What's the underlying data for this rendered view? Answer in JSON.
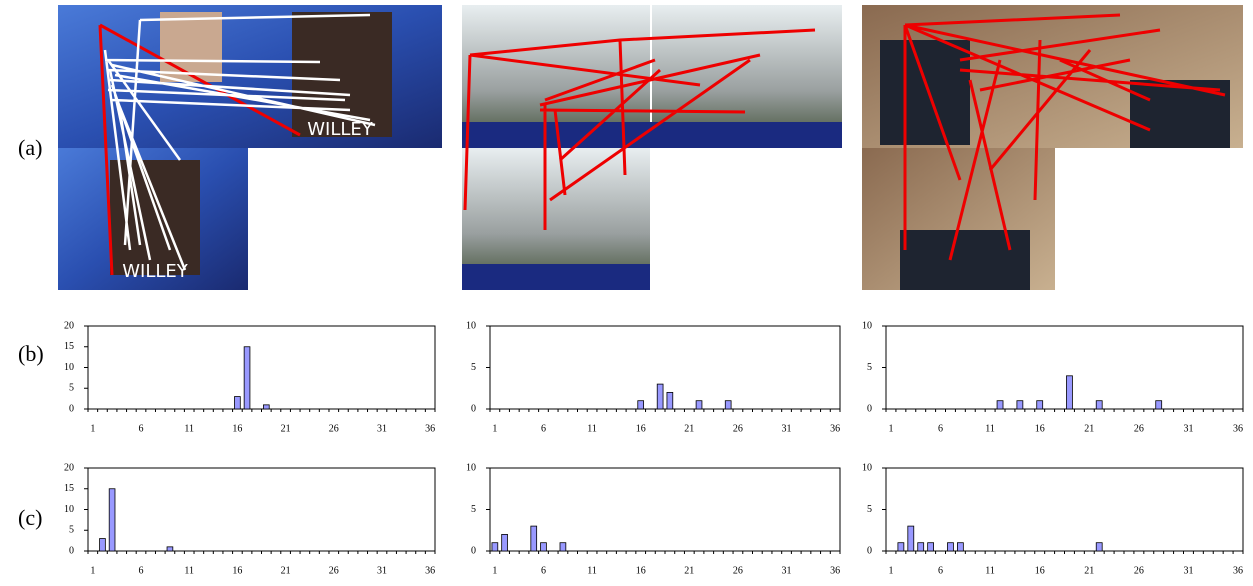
{
  "panel_labels": [
    "(a)",
    "(b)",
    "(c)"
  ],
  "image_captions": [
    "WILLEY",
    "WILLEY"
  ],
  "chart_data": [
    {
      "type": "bar",
      "categories": [
        1,
        null,
        null,
        null,
        null,
        6,
        null,
        null,
        null,
        null,
        11,
        null,
        null,
        null,
        null,
        16,
        null,
        null,
        null,
        null,
        21,
        null,
        null,
        null,
        null,
        26,
        null,
        null,
        null,
        null,
        31,
        null,
        null,
        null,
        null,
        36
      ],
      "values": [
        0,
        0,
        0,
        0,
        0,
        0,
        0,
        0,
        0,
        0,
        0,
        0,
        0,
        0,
        0,
        3,
        15,
        0,
        1,
        0,
        0,
        0,
        0,
        0,
        0,
        0,
        0,
        0,
        0,
        0,
        0,
        0,
        0,
        0,
        0,
        0
      ],
      "color": "#9999ff",
      "ylim": [
        0,
        20
      ],
      "yticks": [
        0,
        5,
        10,
        15,
        20
      ]
    },
    {
      "type": "bar",
      "categories": [
        1,
        null,
        null,
        null,
        null,
        6,
        null,
        null,
        null,
        null,
        11,
        null,
        null,
        null,
        null,
        16,
        null,
        null,
        null,
        null,
        21,
        null,
        null,
        null,
        null,
        26,
        null,
        null,
        null,
        null,
        31,
        null,
        null,
        null,
        null,
        36
      ],
      "values": [
        0,
        0,
        0,
        0,
        0,
        0,
        0,
        0,
        0,
        0,
        0,
        0,
        0,
        0,
        0,
        1,
        0,
        3,
        2,
        0,
        0,
        1,
        0,
        0,
        1,
        0,
        0,
        0,
        0,
        0,
        0,
        0,
        0,
        0,
        0,
        0
      ],
      "color": "#9999ff",
      "ylim": [
        0,
        10
      ],
      "yticks": [
        0,
        5,
        10
      ]
    },
    {
      "type": "bar",
      "categories": [
        1,
        null,
        null,
        null,
        null,
        6,
        null,
        null,
        null,
        null,
        11,
        null,
        null,
        null,
        null,
        16,
        null,
        null,
        null,
        null,
        21,
        null,
        null,
        null,
        null,
        26,
        null,
        null,
        null,
        null,
        31,
        null,
        null,
        null,
        null,
        36
      ],
      "values": [
        0,
        0,
        0,
        0,
        0,
        0,
        0,
        0,
        0,
        0,
        0,
        1,
        0,
        1,
        0,
        1,
        0,
        0,
        4,
        0,
        0,
        1,
        0,
        0,
        0,
        0,
        0,
        1,
        0,
        0,
        0,
        0,
        0,
        0,
        0,
        0
      ],
      "color": "#9999ff",
      "ylim": [
        0,
        10
      ],
      "yticks": [
        0,
        5,
        10
      ]
    },
    {
      "type": "bar",
      "categories": [
        1,
        null,
        null,
        null,
        null,
        6,
        null,
        null,
        null,
        null,
        11,
        null,
        null,
        null,
        null,
        16,
        null,
        null,
        null,
        null,
        21,
        null,
        null,
        null,
        null,
        26,
        null,
        null,
        null,
        null,
        31,
        null,
        null,
        null,
        null,
        36
      ],
      "values": [
        0,
        3,
        15,
        0,
        0,
        0,
        0,
        0,
        1,
        0,
        0,
        0,
        0,
        0,
        0,
        0,
        0,
        0,
        0,
        0,
        0,
        0,
        0,
        0,
        0,
        0,
        0,
        0,
        0,
        0,
        0,
        0,
        0,
        0,
        0,
        0
      ],
      "color": "#9999ff",
      "ylim": [
        0,
        20
      ],
      "yticks": [
        0,
        5,
        10,
        15,
        20
      ]
    },
    {
      "type": "bar",
      "categories": [
        1,
        null,
        null,
        null,
        null,
        6,
        null,
        null,
        null,
        null,
        11,
        null,
        null,
        null,
        null,
        16,
        null,
        null,
        null,
        null,
        21,
        null,
        null,
        null,
        null,
        26,
        null,
        null,
        null,
        null,
        31,
        null,
        null,
        null,
        null,
        36
      ],
      "values": [
        1,
        2,
        0,
        0,
        3,
        1,
        0,
        1,
        0,
        0,
        0,
        0,
        0,
        0,
        0,
        0,
        0,
        0,
        0,
        0,
        0,
        0,
        0,
        0,
        0,
        0,
        0,
        0,
        0,
        0,
        0,
        0,
        0,
        0,
        0,
        0
      ],
      "color": "#9999ff",
      "ylim": [
        0,
        10
      ],
      "yticks": [
        0,
        5,
        10
      ]
    },
    {
      "type": "bar",
      "categories": [
        1,
        null,
        null,
        null,
        null,
        6,
        null,
        null,
        null,
        null,
        11,
        null,
        null,
        null,
        null,
        16,
        null,
        null,
        null,
        null,
        21,
        null,
        null,
        null,
        null,
        26,
        null,
        null,
        null,
        null,
        31,
        null,
        null,
        null,
        null,
        36
      ],
      "values": [
        0,
        1,
        3,
        1,
        1,
        0,
        1,
        1,
        0,
        0,
        0,
        0,
        0,
        0,
        0,
        0,
        0,
        0,
        0,
        0,
        0,
        1,
        0,
        0,
        0,
        0,
        0,
        0,
        0,
        0,
        0,
        0,
        0,
        0,
        0,
        0
      ],
      "color": "#9999ff",
      "ylim": [
        0,
        10
      ],
      "yticks": [
        0,
        5,
        10
      ]
    }
  ]
}
